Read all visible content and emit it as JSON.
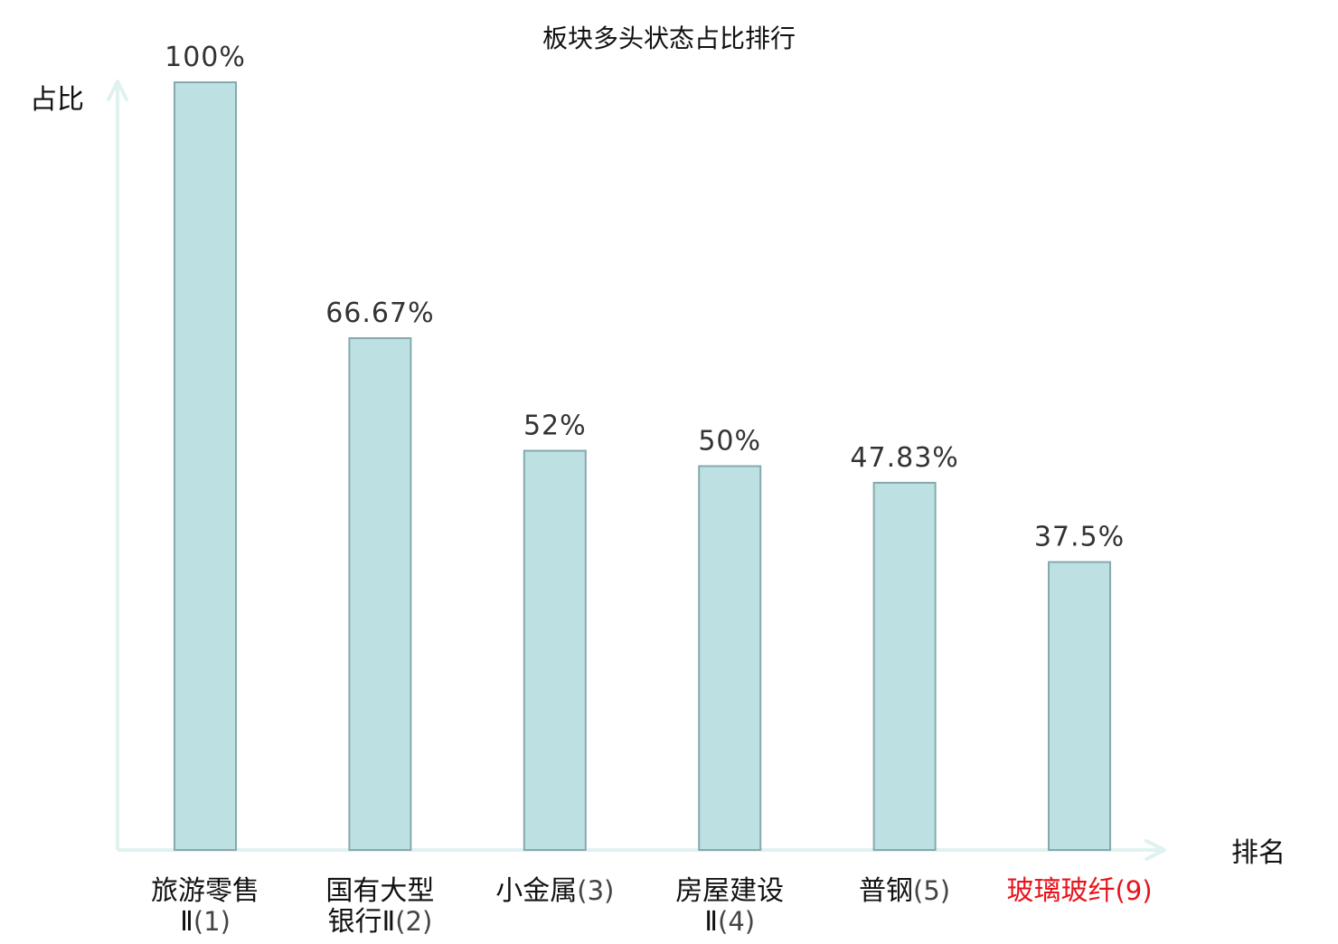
{
  "chart_data": {
    "type": "bar",
    "title": "板块多头状态占比排行",
    "ylabel": "占比",
    "xlabel": "排名",
    "ylim": [
      0,
      100
    ],
    "grid": false,
    "categories": [
      {
        "name": "旅游零售Ⅱ",
        "rank": "(1)",
        "highlight": false
      },
      {
        "name": "国有大型银行Ⅱ",
        "rank": "(2)",
        "highlight": false
      },
      {
        "name": "小金属",
        "rank": "(3)",
        "highlight": false
      },
      {
        "name": "房屋建设Ⅱ",
        "rank": "(4)",
        "highlight": false
      },
      {
        "name": "普钢",
        "rank": "(5)",
        "highlight": false
      },
      {
        "name": "玻璃玻纤",
        "rank": "(9)",
        "highlight": true
      }
    ],
    "values": [
      100,
      66.67,
      52,
      50,
      47.83,
      37.5
    ],
    "value_labels": [
      "100%",
      "66.67%",
      "52%",
      "50%",
      "47.83%",
      "37.5%"
    ],
    "colors": {
      "bar_fill": "#bde0e3",
      "bar_stroke": "#86a9ad",
      "axis": "#e0f2f0",
      "text": "#111111",
      "value_text": "#333333",
      "rank_text": "#444444",
      "highlight": "#e8141c"
    }
  }
}
